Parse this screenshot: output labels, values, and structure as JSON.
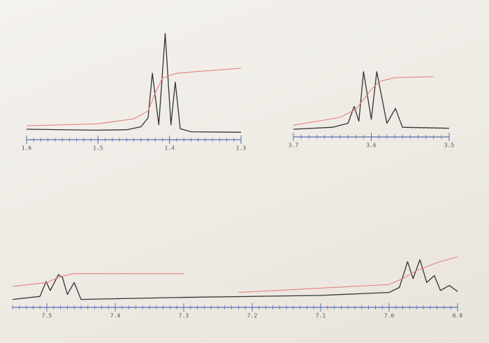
{
  "chart_data": [
    {
      "type": "line",
      "xlim": [
        1.6,
        1.3
      ],
      "ylim": [
        0,
        100
      ],
      "xticks": [
        1.6,
        1.5,
        1.4,
        1.3
      ],
      "axis_color": "#5a6fb0",
      "series": [
        {
          "color": "#333333",
          "x": [
            1.6,
            1.5,
            1.46,
            1.44,
            1.43,
            1.424,
            1.415,
            1.406,
            1.398,
            1.392,
            1.385,
            1.37,
            1.3
          ],
          "values": [
            3.5,
            2.5,
            3,
            6,
            15,
            60,
            8,
            100,
            8,
            51,
            4,
            1,
            0.5
          ]
        },
        {
          "color": "#e88080",
          "x": [
            1.6,
            1.5,
            1.45,
            1.43,
            1.42,
            1.41,
            1.39,
            1.3
          ],
          "values": [
            7,
            9,
            14,
            22,
            40,
            55,
            60,
            65
          ]
        }
      ]
    },
    {
      "type": "line",
      "xlim": [
        3.7,
        3.5
      ],
      "ylim": [
        0,
        100
      ],
      "xticks": [
        3.7,
        3.6,
        3.5
      ],
      "axis_color": "#5a6fb0",
      "series": [
        {
          "color": "#333333",
          "x": [
            3.7,
            3.65,
            3.63,
            3.622,
            3.616,
            3.61,
            3.6,
            3.593,
            3.58,
            3.569,
            3.56,
            3.5
          ],
          "values": [
            0,
            2,
            6,
            23,
            8,
            58,
            10,
            58,
            6,
            21,
            2,
            1
          ]
        },
        {
          "color": "#e88080",
          "x": [
            3.7,
            3.64,
            3.62,
            3.61,
            3.6,
            3.59,
            3.57,
            3.52
          ],
          "values": [
            4,
            12,
            20,
            30,
            40,
            48,
            52,
            53
          ]
        }
      ]
    },
    {
      "type": "line",
      "xlim": [
        7.55,
        6.9
      ],
      "ylim": [
        0,
        100
      ],
      "xticks": [
        7.5,
        7.4,
        7.3,
        7.2,
        7.1,
        {
          "value": 7,
          "label": "7.0"
        },
        6.9
      ],
      "axis_color": "#5a6fb0",
      "series": [
        {
          "color": "#333333",
          "x": [
            7.55,
            7.51,
            7.501,
            7.495,
            7.483,
            7.477,
            7.47,
            7.46,
            7.45,
            7.3,
            7.1,
            7.0,
            6.985,
            6.973,
            6.965,
            6.955,
            6.945,
            6.934,
            6.925,
            6.912,
            6.9
          ],
          "values": [
            1,
            4,
            19,
            10,
            26,
            23,
            6,
            18,
            1,
            3,
            5,
            8,
            13,
            39,
            22,
            41,
            18,
            25,
            10,
            15,
            9
          ]
        },
        {
          "color": "#e88080",
          "x": [
            7.55,
            7.5,
            7.48,
            7.46,
            7.3,
            7.25,
            7.22,
            7.0,
            6.98,
            6.96,
            6.93,
            6.9
          ],
          "values": [
            14,
            18,
            24,
            27,
            27,
            null,
            8,
            16,
            22,
            30,
            38,
            44
          ]
        }
      ]
    }
  ]
}
